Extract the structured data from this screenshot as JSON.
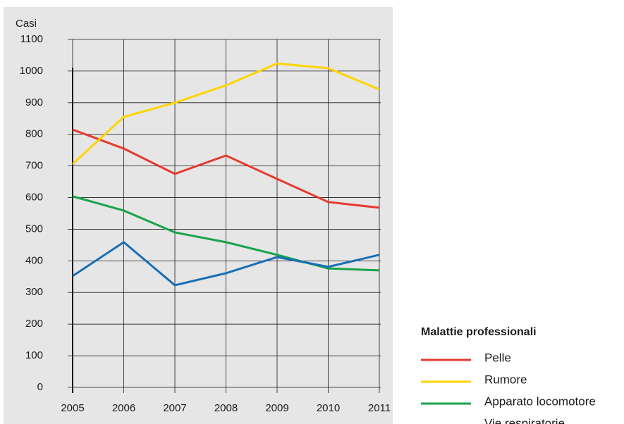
{
  "chart_data": {
    "type": "line",
    "y_label": "Casi",
    "categories": [
      "2005",
      "2006",
      "2007",
      "2008",
      "2009",
      "2010",
      "2011"
    ],
    "series": [
      {
        "name": "Pelle",
        "color": "#e63a2e",
        "values": [
          815,
          755,
          675,
          733,
          659,
          586,
          568
        ]
      },
      {
        "name": "Rumore",
        "color": "#ffd400",
        "values": [
          706,
          855,
          900,
          955,
          1024,
          1009,
          942
        ]
      },
      {
        "name": "Apparato locomotore",
        "color": "#1aa34a",
        "values": [
          604,
          559,
          490,
          459,
          419,
          376,
          370
        ]
      },
      {
        "name": "Vie respiratorie",
        "color": "#1a6fb5",
        "values": [
          352,
          459,
          323,
          361,
          412,
          381,
          419
        ]
      }
    ],
    "ylim": [
      0,
      1100
    ],
    "yticks": [
      0,
      100,
      200,
      300,
      400,
      500,
      600,
      700,
      800,
      900,
      1000,
      1100
    ],
    "grid": true,
    "legend_title": "Malattie professionali"
  }
}
